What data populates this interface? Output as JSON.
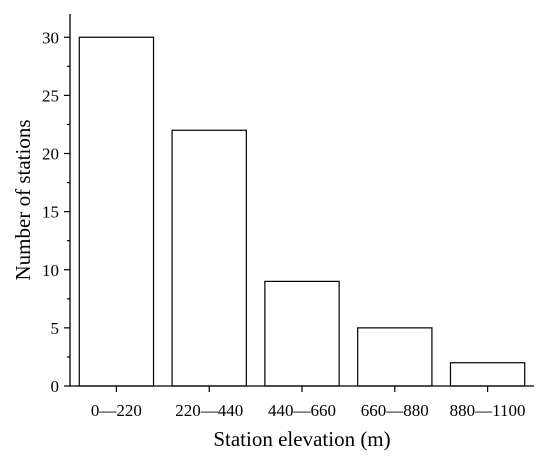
{
  "chart_data": {
    "type": "bar",
    "title": "",
    "xlabel": "Station elevation (m)",
    "ylabel": "Number of stations",
    "categories": [
      "0—220",
      "220—440",
      "440—660",
      "660—880",
      "880—1100"
    ],
    "values": [
      30,
      22,
      9,
      5,
      2
    ],
    "ylim": [
      0,
      32
    ],
    "yticks": [
      0,
      5,
      10,
      15,
      20,
      25,
      30
    ],
    "grid": false,
    "legend": "none",
    "bar_fill": "#ffffff",
    "bar_stroke": "#000000"
  }
}
